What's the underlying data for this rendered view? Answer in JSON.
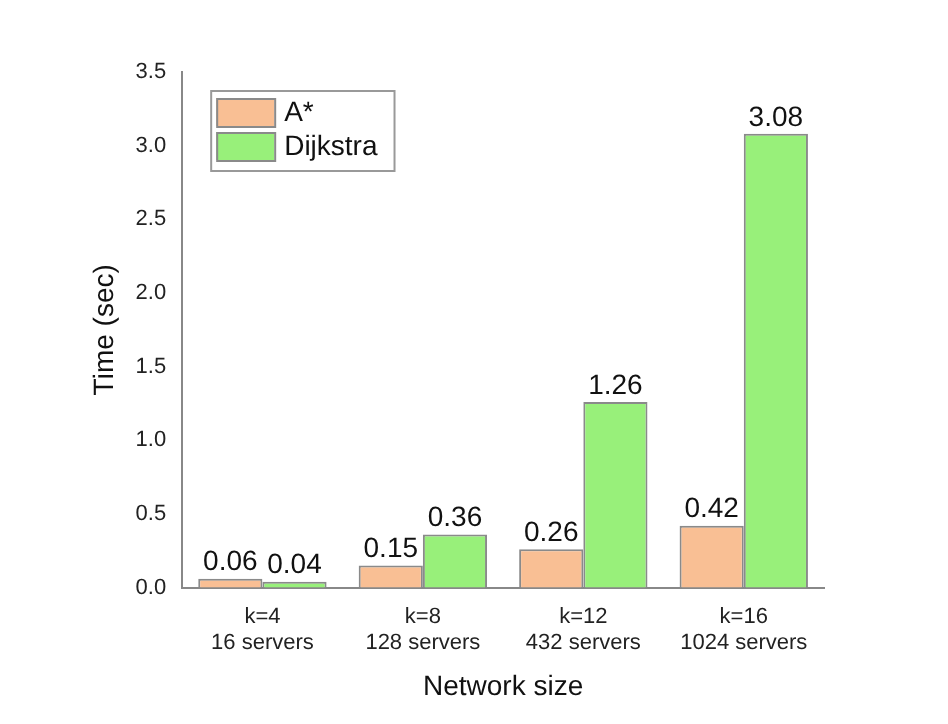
{
  "chart_data": {
    "type": "bar",
    "xlabel": "Network size",
    "ylabel": "Time (sec)",
    "categories": [
      "k=4\n16 servers",
      "k=8\n128 servers",
      "k=12\n432 servers",
      "k=16\n1024 servers"
    ],
    "series": [
      {
        "name": "A*",
        "color": "#f9bf94",
        "values": [
          0.06,
          0.15,
          0.26,
          0.42
        ]
      },
      {
        "name": "Dijkstra",
        "color": "#98f07a",
        "values": [
          0.04,
          0.36,
          1.26,
          3.08
        ]
      }
    ],
    "ylim": [
      0,
      3.5
    ],
    "yticks": [
      {
        "value": 0,
        "label": "0.0"
      },
      {
        "value": 0.5,
        "label": "0.5"
      },
      {
        "value": 1,
        "label": "1.0"
      },
      {
        "value": 1.5,
        "label": "1.5"
      },
      {
        "value": 2,
        "label": "2.0"
      },
      {
        "value": 2.5,
        "label": "2.5"
      },
      {
        "value": 3,
        "label": "3.0"
      },
      {
        "value": 3.5,
        "label": "3.5"
      }
    ],
    "grid": false,
    "legend": "top left",
    "data_labels": true
  }
}
